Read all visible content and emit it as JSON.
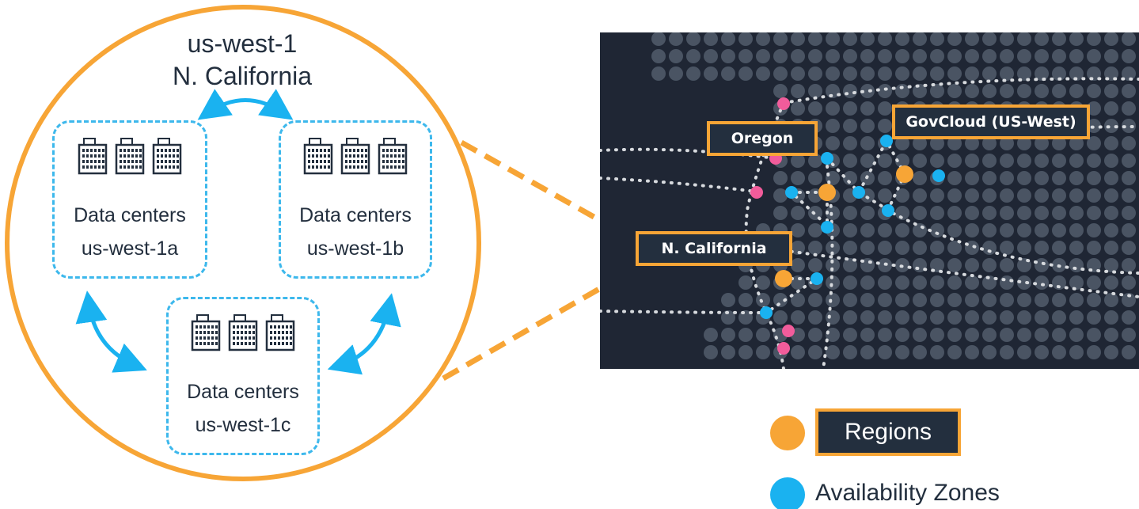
{
  "region": {
    "code": "us-west-1",
    "name": "N. California"
  },
  "zones": [
    {
      "label": "Data centers",
      "code": "us-west-1a"
    },
    {
      "label": "Data centers",
      "code": "us-west-1b"
    },
    {
      "label": "Data centers",
      "code": "us-west-1c"
    }
  ],
  "map": {
    "labels": {
      "oregon": "Oregon",
      "govcloud": "GovCloud (US-West)",
      "ncal": "N. California"
    }
  },
  "legend": {
    "regions": "Regions",
    "availability_zones": "Availability Zones"
  },
  "colors": {
    "orange": "#f7a536",
    "az_blue": "#1ab2f0",
    "dashed_blue": "#3db8ec",
    "navy": "#232f3e",
    "map_bg": "#1f2634",
    "map_dot": "#4a5463",
    "edge_pink": "#f15c9b"
  }
}
